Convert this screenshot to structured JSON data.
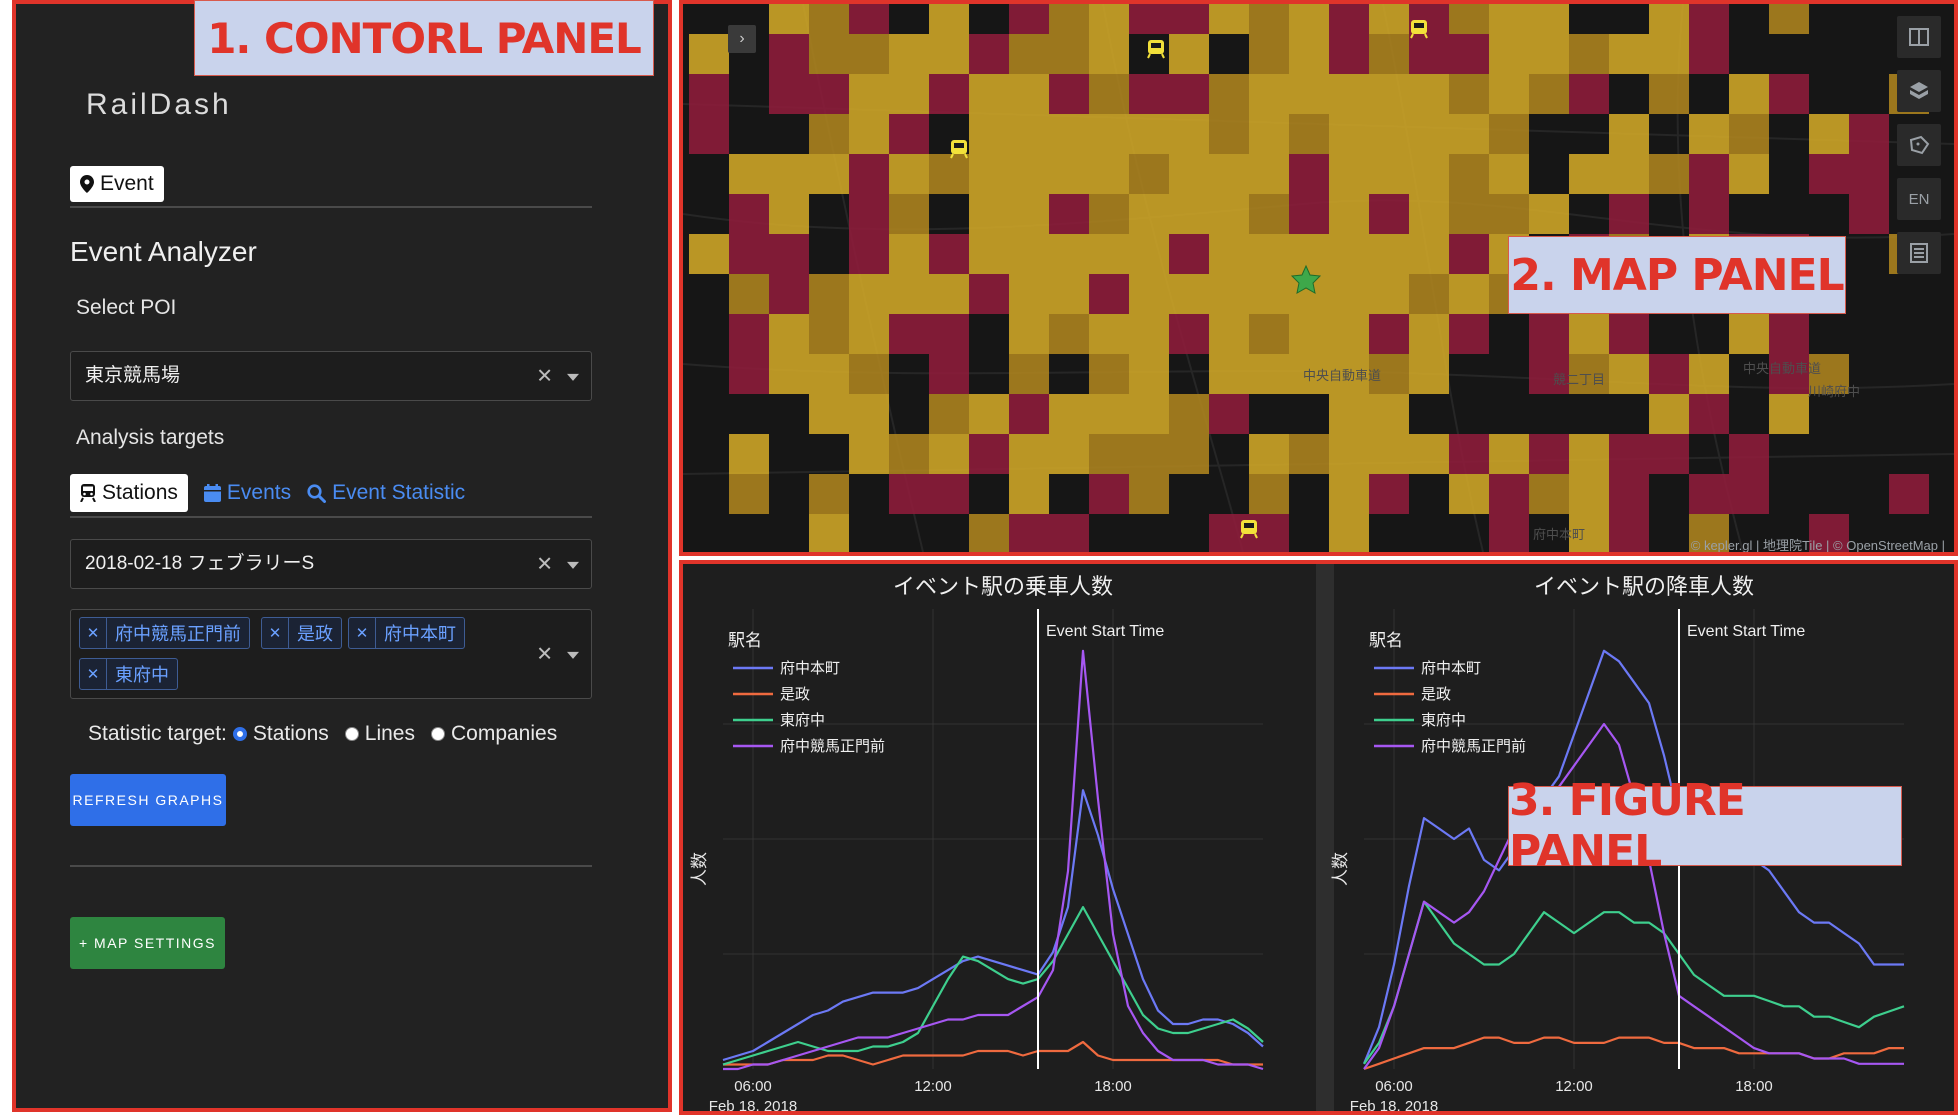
{
  "annotations": {
    "control": "1. CONTORL PANEL",
    "map": "2. MAP PANEL",
    "figure": "3. FIGURE PANEL"
  },
  "app": {
    "title": "RailDash"
  },
  "nav": {
    "event_tab": "Event"
  },
  "analyzer": {
    "title": "Event Analyzer",
    "poi_label": "Select POI",
    "poi_value": "東京競馬場",
    "targets_label": "Analysis targets",
    "tabs": [
      {
        "label": "Stations",
        "active": true,
        "icon": "train-icon"
      },
      {
        "label": "Events",
        "active": false,
        "icon": "calendar-icon"
      },
      {
        "label": "Event Statistic",
        "active": false,
        "icon": "search-icon"
      }
    ],
    "event_value": "2018-02-18 フェブラリーS",
    "stations": [
      "府中競馬正門前",
      "是政",
      "府中本町",
      "東府中"
    ],
    "statistic_label": "Statistic target:",
    "statistic_options": [
      {
        "label": "Stations",
        "checked": true
      },
      {
        "label": "Lines",
        "checked": false
      },
      {
        "label": "Companies",
        "checked": false
      }
    ],
    "refresh_label": "REFRESH GRAPHS",
    "map_settings_label": "+ MAP SETTINGS"
  },
  "map": {
    "attribution": "© kepler.gl | 地理院Tile | © OpenStreetMap |",
    "controls": [
      "split-map-icon",
      "3d-view-icon",
      "draw-polygon-icon",
      "EN",
      "legend-icon"
    ],
    "place_labels": [
      "中央自動車道",
      "中央自動車道",
      "川崎府中",
      "競二丁目",
      "府中本町"
    ],
    "colors": {
      "yellow": "#c9a227",
      "dark_yellow": "#a8801e",
      "red": "#8a1c3a"
    }
  },
  "chart_data": [
    {
      "type": "line",
      "title": "イベント駅の乗車人数",
      "ylabel": "人数",
      "legend_title": "駅名",
      "x_ticks": [
        "06:00",
        "12:00",
        "18:00"
      ],
      "x_sublabel": "Feb 18, 2018",
      "event_marker": {
        "label": "Event Start Time",
        "x": "15:30"
      },
      "x": [
        "05:00",
        "05:30",
        "06:00",
        "06:30",
        "07:00",
        "07:30",
        "08:00",
        "08:30",
        "09:00",
        "09:30",
        "10:00",
        "10:30",
        "11:00",
        "11:30",
        "12:00",
        "12:30",
        "13:00",
        "13:30",
        "14:00",
        "14:30",
        "15:00",
        "15:30",
        "16:00",
        "16:30",
        "17:00",
        "17:30",
        "18:00",
        "18:30",
        "19:00",
        "19:30",
        "20:00",
        "20:30",
        "21:00",
        "21:30",
        "22:00",
        "22:30",
        "23:00"
      ],
      "series": [
        {
          "name": "府中本町",
          "color": "#6c79f5",
          "values": [
            2,
            3,
            4,
            6,
            8,
            10,
            12,
            13,
            15,
            16,
            17,
            17,
            17,
            18,
            20,
            22,
            24,
            25,
            24,
            23,
            22,
            21,
            26,
            36,
            62,
            52,
            40,
            30,
            20,
            13,
            10,
            10,
            11,
            11,
            10,
            8,
            5
          ]
        },
        {
          "name": "是政",
          "color": "#ef6a3f",
          "values": [
            1,
            1,
            1,
            1,
            2,
            2,
            2,
            3,
            3,
            2,
            1,
            2,
            3,
            3,
            3,
            3,
            3,
            4,
            4,
            4,
            3,
            4,
            4,
            4,
            6,
            3,
            2,
            2,
            2,
            2,
            2,
            2,
            2,
            2,
            1,
            1,
            1
          ]
        },
        {
          "name": "東府中",
          "color": "#3ecf8e",
          "values": [
            1,
            2,
            3,
            4,
            5,
            6,
            5,
            4,
            4,
            4,
            5,
            5,
            6,
            8,
            14,
            20,
            25,
            24,
            22,
            20,
            19,
            20,
            24,
            30,
            36,
            30,
            24,
            18,
            12,
            9,
            8,
            8,
            9,
            10,
            11,
            9,
            6
          ]
        },
        {
          "name": "府中競馬正門前",
          "color": "#a657f2",
          "values": [
            0,
            0,
            1,
            1,
            2,
            3,
            4,
            5,
            6,
            7,
            7,
            7,
            8,
            9,
            10,
            11,
            11,
            12,
            12,
            12,
            14,
            16,
            22,
            44,
            93,
            60,
            30,
            14,
            8,
            4,
            2,
            2,
            2,
            1,
            1,
            1,
            0
          ]
        }
      ]
    },
    {
      "type": "line",
      "title": "イベント駅の降車人数",
      "ylabel": "人数",
      "legend_title": "駅名",
      "x_ticks": [
        "06:00",
        "12:00",
        "18:00"
      ],
      "x_sublabel": "Feb 18, 2018",
      "event_marker": {
        "label": "Event Start Time",
        "x": "15:30"
      },
      "x": [
        "05:00",
        "05:30",
        "06:00",
        "06:30",
        "07:00",
        "07:30",
        "08:00",
        "08:30",
        "09:00",
        "09:30",
        "10:00",
        "10:30",
        "11:00",
        "11:30",
        "12:00",
        "12:30",
        "13:00",
        "13:30",
        "14:00",
        "14:30",
        "15:00",
        "15:30",
        "16:00",
        "16:30",
        "17:00",
        "17:30",
        "18:00",
        "18:30",
        "19:00",
        "19:30",
        "20:00",
        "20:30",
        "21:00",
        "21:30",
        "22:00",
        "22:30",
        "23:00"
      ],
      "series": [
        {
          "name": "府中本町",
          "color": "#6c79f5",
          "values": [
            1,
            8,
            20,
            35,
            48,
            46,
            44,
            46,
            40,
            38,
            42,
            46,
            52,
            56,
            64,
            72,
            80,
            78,
            74,
            70,
            60,
            48,
            40,
            40,
            40,
            40,
            40,
            38,
            34,
            30,
            28,
            28,
            26,
            24,
            20,
            20,
            20
          ]
        },
        {
          "name": "是政",
          "color": "#ef6a3f",
          "values": [
            0,
            1,
            2,
            3,
            4,
            4,
            4,
            5,
            6,
            6,
            5,
            5,
            6,
            6,
            5,
            5,
            5,
            6,
            6,
            6,
            5,
            5,
            4,
            4,
            4,
            3,
            3,
            3,
            3,
            3,
            2,
            2,
            3,
            3,
            3,
            4,
            4
          ]
        },
        {
          "name": "東府中",
          "color": "#3ecf8e",
          "values": [
            1,
            5,
            12,
            22,
            32,
            28,
            24,
            22,
            20,
            20,
            22,
            26,
            30,
            28,
            26,
            28,
            30,
            30,
            28,
            28,
            26,
            22,
            18,
            16,
            14,
            14,
            14,
            13,
            12,
            12,
            10,
            10,
            9,
            8,
            10,
            11,
            12
          ]
        },
        {
          "name": "府中競馬正門前",
          "color": "#a657f2",
          "values": [
            0,
            4,
            12,
            22,
            32,
            30,
            28,
            30,
            34,
            40,
            46,
            48,
            50,
            54,
            58,
            62,
            66,
            62,
            52,
            40,
            26,
            14,
            12,
            10,
            8,
            6,
            4,
            3,
            3,
            3,
            2,
            2,
            2,
            1,
            1,
            1,
            1
          ]
        }
      ]
    }
  ]
}
